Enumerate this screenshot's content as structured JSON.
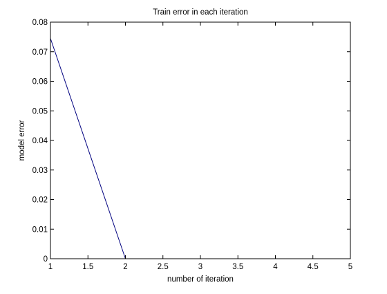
{
  "chart_data": {
    "type": "line",
    "title": "Train error in each iteration",
    "xlabel": "number of iteration",
    "ylabel": "model error",
    "xlim": [
      1,
      5
    ],
    "ylim": [
      0,
      0.08
    ],
    "xticks": [
      1,
      1.5,
      2,
      2.5,
      3,
      3.5,
      4,
      4.5,
      5
    ],
    "xtick_labels": [
      "1",
      "1.5",
      "2",
      "2.5",
      "3",
      "3.5",
      "4",
      "4.5",
      "5"
    ],
    "yticks": [
      0,
      0.01,
      0.02,
      0.03,
      0.04,
      0.05,
      0.06,
      0.07,
      0.08
    ],
    "ytick_labels": [
      "0",
      "0.01",
      "0.02",
      "0.03",
      "0.04",
      "0.05",
      "0.06",
      "0.07",
      "0.08"
    ],
    "grid": false,
    "series": [
      {
        "color": "#00007f",
        "x": [
          1,
          2
        ],
        "y": [
          0.0745,
          0
        ]
      }
    ]
  }
}
